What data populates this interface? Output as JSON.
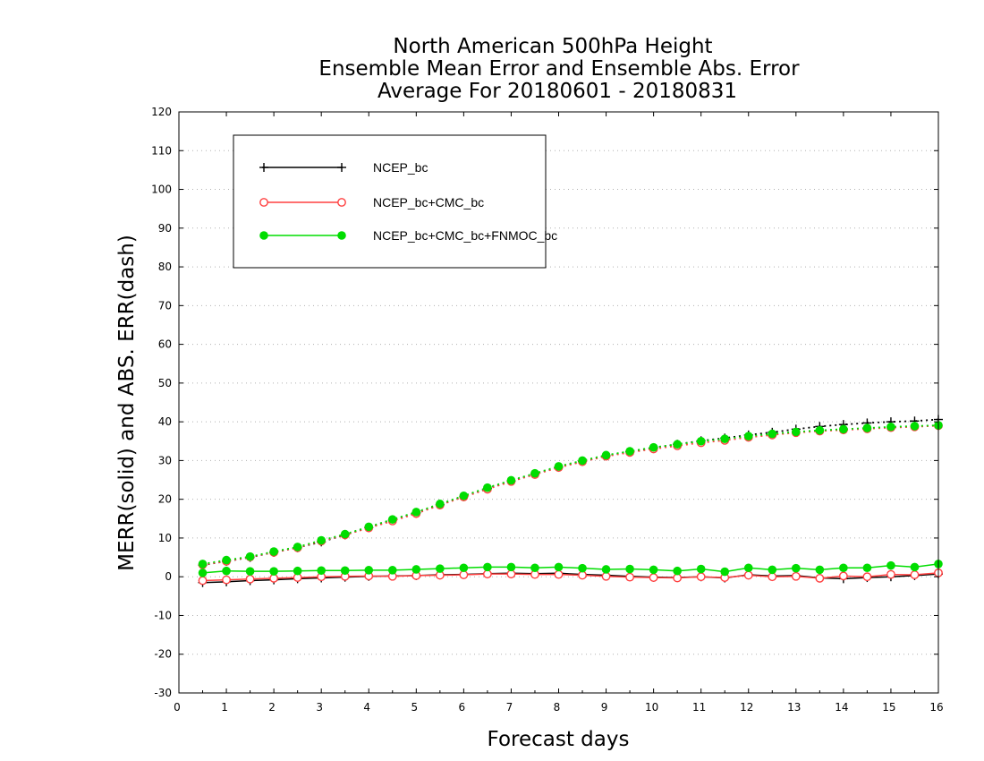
{
  "chart_data": {
    "type": "line",
    "title": [
      "North American 500hPa Height",
      "Ensemble Mean Error and Ensemble Abs. Error",
      "Average For 20180601 - 20180831"
    ],
    "xlabel": "Forecast days",
    "ylabel": "MERR(solid) and ABS. ERR(dash)",
    "xlim": [
      0,
      16
    ],
    "ylim": [
      -30,
      120
    ],
    "x_ticks": [
      0,
      1,
      2,
      3,
      4,
      5,
      6,
      7,
      8,
      9,
      10,
      11,
      12,
      13,
      14,
      15,
      16
    ],
    "y_ticks": [
      -30,
      -20,
      -10,
      0,
      10,
      20,
      30,
      40,
      50,
      60,
      70,
      80,
      90,
      100,
      110,
      120
    ],
    "grid": true,
    "legend_position": "top-left",
    "x": [
      0.5,
      1,
      1.5,
      2,
      2.5,
      3,
      3.5,
      4,
      4.5,
      5,
      5.5,
      6,
      6.5,
      7,
      7.5,
      8,
      8.5,
      9,
      9.5,
      10,
      10.5,
      11,
      11.5,
      12,
      12.5,
      13,
      13.5,
      14,
      14.5,
      15,
      15.5,
      16
    ],
    "series": [
      {
        "name": "NCEP_bc",
        "color": "#000000",
        "marker": "plus",
        "merr": [
          -1.5,
          -1.3,
          -1.0,
          -0.8,
          -0.5,
          -0.3,
          -0.1,
          0.1,
          0.2,
          0.3,
          0.5,
          0.6,
          0.8,
          0.9,
          0.8,
          0.9,
          0.6,
          0.4,
          0.1,
          -0.1,
          -0.2,
          0.0,
          -0.3,
          0.5,
          0.2,
          0.3,
          -0.3,
          -0.5,
          -0.2,
          0.0,
          0.3,
          0.7
        ],
        "abs_err": [
          3.0,
          4.0,
          5.0,
          6.3,
          7.5,
          9.0,
          10.8,
          12.7,
          14.6,
          16.5,
          18.6,
          20.7,
          22.8,
          24.7,
          26.5,
          28.3,
          29.8,
          31.2,
          32.3,
          33.3,
          34.2,
          35.1,
          35.8,
          36.6,
          37.3,
          38.1,
          38.8,
          39.3,
          39.7,
          40.0,
          40.2,
          40.6
        ]
      },
      {
        "name": "NCEP_bc+CMC_bc",
        "color": "#ff4040",
        "marker": "open-circle",
        "merr": [
          -1.0,
          -0.8,
          -0.6,
          -0.4,
          -0.2,
          0.0,
          0.1,
          0.2,
          0.1,
          0.3,
          0.4,
          0.5,
          0.7,
          0.7,
          0.6,
          0.6,
          0.4,
          0.1,
          -0.1,
          -0.2,
          -0.3,
          0.0,
          -0.2,
          0.4,
          0.0,
          0.1,
          -0.4,
          0.2,
          0.0,
          0.6,
          0.5,
          1.0
        ],
        "abs_err": [
          3.1,
          4.0,
          5.1,
          6.3,
          7.5,
          9.2,
          10.8,
          12.6,
          14.4,
          16.3,
          18.5,
          20.6,
          22.6,
          24.6,
          26.4,
          28.2,
          29.7,
          31.1,
          32.1,
          33.0,
          33.8,
          34.6,
          35.2,
          36.0,
          36.6,
          37.2,
          37.6,
          37.9,
          38.2,
          38.5,
          38.7,
          39.0
        ]
      },
      {
        "name": "NCEP_bc+CMC_bc+FNMOC_bc",
        "color": "#00dd00",
        "marker": "filled-circle",
        "merr": [
          1.0,
          1.5,
          1.4,
          1.4,
          1.5,
          1.6,
          1.6,
          1.7,
          1.7,
          1.9,
          2.1,
          2.3,
          2.5,
          2.5,
          2.3,
          2.5,
          2.2,
          1.9,
          2.0,
          1.8,
          1.5,
          2.0,
          1.3,
          2.3,
          1.8,
          2.2,
          1.8,
          2.3,
          2.3,
          2.9,
          2.5,
          3.3
        ],
        "abs_err": [
          3.3,
          4.3,
          5.2,
          6.5,
          7.7,
          9.4,
          11.0,
          12.9,
          14.8,
          16.7,
          18.8,
          20.9,
          23.0,
          24.9,
          26.7,
          28.5,
          30.0,
          31.4,
          32.4,
          33.4,
          34.2,
          35.0,
          35.6,
          36.3,
          36.9,
          37.4,
          37.8,
          38.1,
          38.4,
          38.7,
          38.9,
          39.1
        ]
      }
    ]
  }
}
